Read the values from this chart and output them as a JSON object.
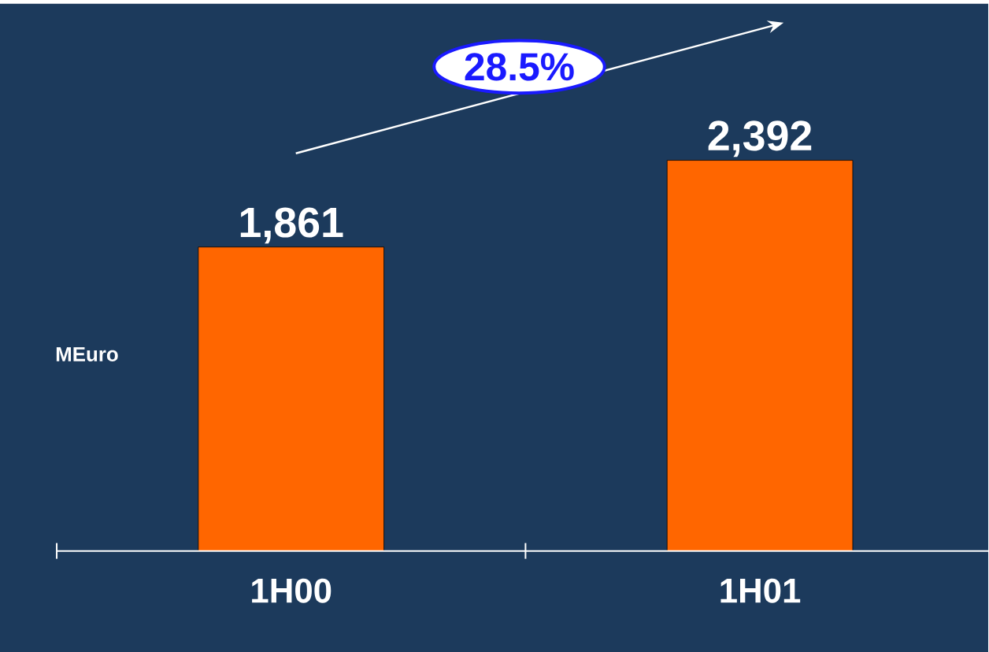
{
  "chart_data": {
    "type": "bar",
    "categories": [
      "1H00",
      "1H01"
    ],
    "values": [
      1861,
      2392
    ],
    "color": "#ff6600",
    "value_labels": [
      "1,861",
      "2,392"
    ],
    "ylabel": "MEuro",
    "annotations": [
      "28.5%"
    ]
  }
}
